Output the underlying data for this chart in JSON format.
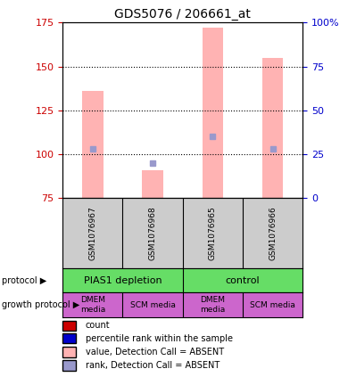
{
  "title": "GDS5076 / 206661_at",
  "samples": [
    "GSM1076967",
    "GSM1076968",
    "GSM1076965",
    "GSM1076966"
  ],
  "bar_values": [
    136,
    91,
    172,
    155
  ],
  "bar_bottom": [
    75,
    75,
    75,
    75
  ],
  "rank_markers": [
    103,
    95,
    110,
    103
  ],
  "ylim_left": [
    75,
    175
  ],
  "ylim_right": [
    0,
    100
  ],
  "yticks_left": [
    75,
    100,
    125,
    150,
    175
  ],
  "yticks_right": [
    0,
    25,
    50,
    75,
    100
  ],
  "bar_color": "#FFB3B3",
  "rank_color": "#9999CC",
  "left_tick_color": "#CC0000",
  "right_tick_color": "#0000CC",
  "grid_color": "black",
  "protocol_labels": [
    "PIAS1 depletion",
    "control"
  ],
  "protocol_color": "#66DD66",
  "growth_labels": [
    "DMEM\nmedia",
    "SCM media",
    "DMEM\nmedia",
    "SCM media"
  ],
  "growth_color": "#CC66CC",
  "sample_bg_color": "#CCCCCC",
  "legend_colors": [
    "#CC0000",
    "#0000CC",
    "#FFB3B3",
    "#9999CC"
  ],
  "legend_labels": [
    "count",
    "percentile rank within the sample",
    "value, Detection Call = ABSENT",
    "rank, Detection Call = ABSENT"
  ]
}
